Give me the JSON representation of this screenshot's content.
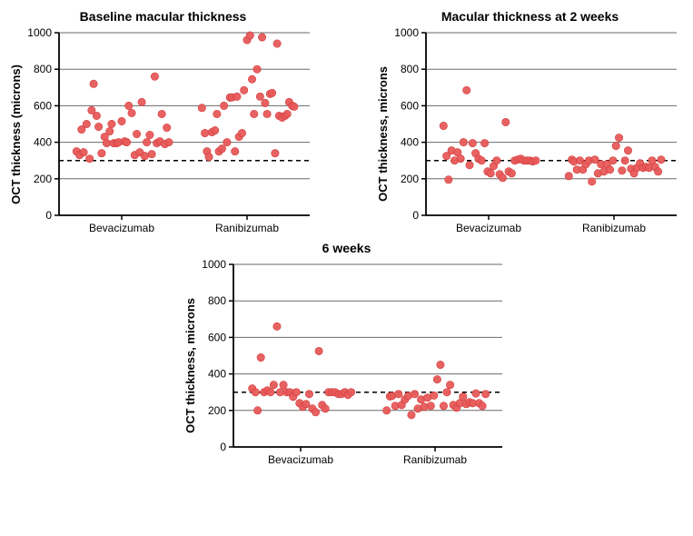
{
  "global": {
    "point_color": "#e85a5a",
    "point_stroke": "#d23c3c",
    "point_radius": 4.2,
    "grid_color": "#6a6a6a",
    "axis_color": "#000000",
    "ref_color": "#000000",
    "background": "#ffffff",
    "tick_fontsize": 12,
    "label_fontsize": 13,
    "title_fontsize": 14,
    "ylim": [
      0,
      1000
    ],
    "ytick_step": 200,
    "ref_y": 300,
    "categories": [
      "Bevacizumab",
      "Ranibizumab"
    ]
  },
  "charts": [
    {
      "id": "baseline",
      "title": "Baseline macular thickness",
      "ylabel": "OCT thickness (microns)",
      "series": {
        "Bevacizumab": {
          "x": [
            0.05,
            0.08,
            0.1,
            0.12,
            0.15,
            0.18,
            0.2,
            0.22,
            0.25,
            0.27,
            0.3,
            0.33,
            0.35,
            0.38,
            0.4,
            0.42,
            0.45,
            0.47,
            0.5,
            0.53,
            0.55,
            0.57,
            0.6,
            0.63,
            0.65,
            0.68,
            0.7,
            0.73,
            0.75,
            0.78,
            0.8,
            0.83,
            0.85,
            0.88,
            0.9,
            0.93,
            0.95,
            0.97
          ],
          "y": [
            350,
            330,
            470,
            345,
            500,
            310,
            575,
            720,
            545,
            485,
            340,
            430,
            395,
            460,
            500,
            395,
            395,
            400,
            515,
            405,
            400,
            600,
            560,
            330,
            445,
            345,
            620,
            325,
            400,
            440,
            335,
            760,
            395,
            405,
            555,
            390,
            480,
            400
          ]
        },
        "Ranibizumab": {
          "x": [
            0.05,
            0.08,
            0.1,
            0.12,
            0.15,
            0.18,
            0.2,
            0.22,
            0.25,
            0.27,
            0.3,
            0.33,
            0.35,
            0.38,
            0.4,
            0.42,
            0.45,
            0.47,
            0.5,
            0.53,
            0.55,
            0.57,
            0.6,
            0.63,
            0.65,
            0.68,
            0.7,
            0.73,
            0.75,
            0.78,
            0.8,
            0.82,
            0.85,
            0.88,
            0.9,
            0.92,
            0.95,
            0.97
          ],
          "y": [
            588,
            450,
            350,
            320,
            455,
            465,
            555,
            350,
            365,
            600,
            400,
            645,
            646,
            350,
            650,
            430,
            450,
            685,
            960,
            985,
            745,
            555,
            800,
            650,
            975,
            615,
            555,
            665,
            670,
            340,
            940,
            545,
            535,
            545,
            555,
            620,
            600,
            595
          ]
        }
      }
    },
    {
      "id": "week2",
      "title": "Macular thickness at 2 weeks",
      "ylabel": "OCT thickness, microns",
      "series": {
        "Bevacizumab": {
          "x": [
            0.05,
            0.08,
            0.1,
            0.13,
            0.16,
            0.19,
            0.22,
            0.25,
            0.28,
            0.31,
            0.34,
            0.37,
            0.4,
            0.43,
            0.46,
            0.49,
            0.52,
            0.55,
            0.58,
            0.61,
            0.64,
            0.67,
            0.7,
            0.73,
            0.76,
            0.79,
            0.82,
            0.85,
            0.88,
            0.91,
            0.94,
            0.97
          ],
          "y": [
            490,
            325,
            195,
            355,
            300,
            345,
            310,
            400,
            685,
            275,
            395,
            340,
            310,
            300,
            395,
            240,
            230,
            270,
            300,
            225,
            205,
            510,
            240,
            230,
            300,
            305,
            310,
            300,
            300,
            300,
            295,
            300
          ]
        },
        "Ranibizumab": {
          "x": [
            0.05,
            0.08,
            0.1,
            0.13,
            0.16,
            0.19,
            0.22,
            0.25,
            0.28,
            0.31,
            0.34,
            0.37,
            0.4,
            0.43,
            0.46,
            0.49,
            0.52,
            0.55,
            0.58,
            0.61,
            0.64,
            0.67,
            0.7,
            0.73,
            0.76,
            0.79,
            0.82,
            0.85,
            0.88,
            0.91,
            0.94,
            0.97
          ],
          "y": [
            215,
            305,
            295,
            250,
            300,
            250,
            280,
            300,
            185,
            305,
            230,
            280,
            240,
            280,
            250,
            300,
            380,
            425,
            245,
            300,
            355,
            255,
            230,
            260,
            285,
            260,
            265,
            260,
            300,
            265,
            240,
            305
          ]
        }
      }
    },
    {
      "id": "week6",
      "title": "6 weeks",
      "ylabel": "OCT thickness, microns",
      "series": {
        "Bevacizumab": {
          "x": [
            0.05,
            0.08,
            0.1,
            0.13,
            0.16,
            0.19,
            0.22,
            0.25,
            0.28,
            0.31,
            0.34,
            0.37,
            0.4,
            0.43,
            0.46,
            0.49,
            0.52,
            0.55,
            0.58,
            0.61,
            0.64,
            0.67,
            0.7,
            0.73,
            0.76,
            0.79,
            0.82,
            0.85,
            0.88,
            0.91,
            0.94,
            0.97
          ],
          "y": [
            320,
            300,
            200,
            490,
            300,
            310,
            300,
            340,
            660,
            300,
            340,
            300,
            300,
            275,
            300,
            240,
            220,
            235,
            290,
            210,
            190,
            525,
            230,
            210,
            300,
            300,
            300,
            290,
            290,
            300,
            285,
            300
          ]
        },
        "Ranibizumab": {
          "x": [
            0.05,
            0.08,
            0.1,
            0.13,
            0.16,
            0.19,
            0.22,
            0.25,
            0.28,
            0.31,
            0.34,
            0.37,
            0.4,
            0.43,
            0.46,
            0.49,
            0.52,
            0.55,
            0.58,
            0.61,
            0.64,
            0.67,
            0.7,
            0.73,
            0.76,
            0.79,
            0.82,
            0.85,
            0.88,
            0.91,
            0.94,
            0.97
          ],
          "y": [
            200,
            277,
            280,
            225,
            290,
            230,
            260,
            280,
            175,
            290,
            210,
            260,
            220,
            270,
            225,
            282,
            370,
            450,
            225,
            300,
            340,
            230,
            215,
            240,
            275,
            235,
            245,
            240,
            293,
            240,
            225,
            290
          ]
        }
      }
    }
  ]
}
